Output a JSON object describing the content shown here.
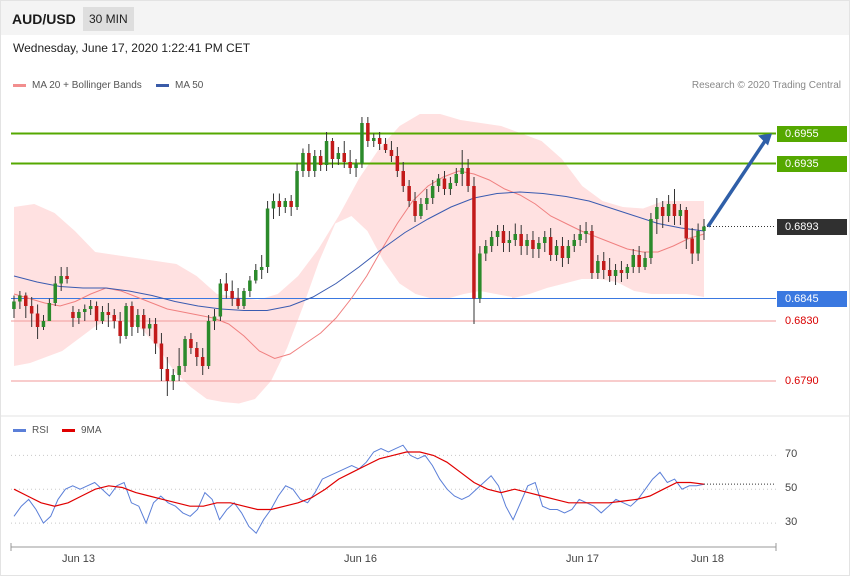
{
  "header": {
    "symbol": "AUD/USD",
    "timeframe": "30 MIN"
  },
  "timestamp": "Wednesday, June 17, 2020 1:22:41 PM CET",
  "credit": "Research © 2020 Trading Central",
  "colors": {
    "up": "#2b8a2b",
    "down": "#c21a1a",
    "band_fill": "#ffe1e1",
    "ma20": "#f08080",
    "ma50": "#3a5bb0",
    "resistance": "#55a800",
    "support": "#3a78e0",
    "support_weak": "#f29a9a",
    "current": "#303030",
    "rsi": "#5b7fd8",
    "rsi_ma": "#e00000",
    "arrow": "#2f5fa8"
  },
  "price_legend": [
    {
      "label": "MA 20 + Bollinger Bands",
      "color": "#f28e8e"
    },
    {
      "label": "MA 50",
      "color": "#3a5ba8"
    }
  ],
  "rsi_legend": [
    {
      "label": "RSI",
      "color": "#5b7fd8"
    },
    {
      "label": "9MA",
      "color": "#e00000"
    }
  ],
  "levels": [
    {
      "label": "0.6955",
      "style": "resistance"
    },
    {
      "label": "0.6935",
      "style": "resistance"
    },
    {
      "label": "0.6893",
      "style": "current"
    },
    {
      "label": "0.6845",
      "style": "support"
    },
    {
      "label": "0.6830",
      "style": "support_weak"
    },
    {
      "label": "0.6790",
      "style": "support_weak"
    }
  ],
  "chart_data": [
    {
      "type": "candlestick",
      "title": "AUD/USD 30 MIN",
      "y_unit": "price",
      "ylim": [
        0.6772,
        0.6972
      ],
      "x_ticks": [
        "Jun 13",
        "Jun 16",
        "Jun 17",
        "Jun 18"
      ],
      "target_arrow": {
        "from_price": 0.6893,
        "to_price": 0.6955
      },
      "candles": [
        {
          "o": 0.6838,
          "h": 0.6847,
          "c": 0.6843,
          "l": 0.6832
        },
        {
          "o": 0.6843,
          "h": 0.685,
          "c": 0.6847,
          "l": 0.6838
        },
        {
          "o": 0.6847,
          "h": 0.6849,
          "c": 0.684,
          "l": 0.6832
        },
        {
          "o": 0.684,
          "h": 0.6846,
          "c": 0.6835,
          "l": 0.6826
        },
        {
          "o": 0.6835,
          "h": 0.6841,
          "c": 0.6826,
          "l": 0.6818
        },
        {
          "o": 0.6826,
          "h": 0.6834,
          "c": 0.683,
          "l": 0.6824
        },
        {
          "o": 0.683,
          "h": 0.6845,
          "c": 0.6842,
          "l": 0.683
        },
        {
          "o": 0.6842,
          "h": 0.686,
          "c": 0.6855,
          "l": 0.684
        },
        {
          "o": 0.6855,
          "h": 0.6866,
          "c": 0.686,
          "l": 0.685
        },
        {
          "o": 0.686,
          "h": 0.6866,
          "c": 0.6858,
          "l": 0.6855
        },
        {
          "o": 0.6836,
          "h": 0.684,
          "c": 0.6832,
          "l": 0.6826
        },
        {
          "o": 0.6832,
          "h": 0.6838,
          "c": 0.6836,
          "l": 0.6828
        },
        {
          "o": 0.6836,
          "h": 0.6841,
          "c": 0.6838,
          "l": 0.683
        },
        {
          "o": 0.6838,
          "h": 0.6844,
          "c": 0.684,
          "l": 0.6834
        },
        {
          "o": 0.684,
          "h": 0.6843,
          "c": 0.683,
          "l": 0.6824
        },
        {
          "o": 0.683,
          "h": 0.684,
          "c": 0.6836,
          "l": 0.6828
        },
        {
          "o": 0.6836,
          "h": 0.6842,
          "c": 0.6834,
          "l": 0.6826
        },
        {
          "o": 0.6834,
          "h": 0.6838,
          "c": 0.683,
          "l": 0.6825
        },
        {
          "o": 0.683,
          "h": 0.6836,
          "c": 0.682,
          "l": 0.6815
        },
        {
          "o": 0.682,
          "h": 0.6842,
          "c": 0.684,
          "l": 0.6818
        },
        {
          "o": 0.684,
          "h": 0.6843,
          "c": 0.6826,
          "l": 0.682
        },
        {
          "o": 0.6826,
          "h": 0.6838,
          "c": 0.6834,
          "l": 0.6822
        },
        {
          "o": 0.6834,
          "h": 0.6838,
          "c": 0.6825,
          "l": 0.682
        },
        {
          "o": 0.6825,
          "h": 0.6832,
          "c": 0.6828,
          "l": 0.682
        },
        {
          "o": 0.6828,
          "h": 0.6832,
          "c": 0.6815,
          "l": 0.6808
        },
        {
          "o": 0.6815,
          "h": 0.6822,
          "c": 0.6798,
          "l": 0.679
        },
        {
          "o": 0.6798,
          "h": 0.6806,
          "c": 0.679,
          "l": 0.678
        },
        {
          "o": 0.679,
          "h": 0.6798,
          "c": 0.6794,
          "l": 0.6784
        },
        {
          "o": 0.6794,
          "h": 0.6812,
          "c": 0.68,
          "l": 0.679
        },
        {
          "o": 0.68,
          "h": 0.682,
          "c": 0.6818,
          "l": 0.6796
        },
        {
          "o": 0.6818,
          "h": 0.6822,
          "c": 0.6812,
          "l": 0.6808
        },
        {
          "o": 0.6812,
          "h": 0.6816,
          "c": 0.6806,
          "l": 0.68
        },
        {
          "o": 0.6806,
          "h": 0.6812,
          "c": 0.68,
          "l": 0.6794
        },
        {
          "o": 0.68,
          "h": 0.6834,
          "c": 0.683,
          "l": 0.6798
        },
        {
          "o": 0.683,
          "h": 0.6838,
          "c": 0.6833,
          "l": 0.6824
        },
        {
          "o": 0.6833,
          "h": 0.6858,
          "c": 0.6855,
          "l": 0.683
        },
        {
          "o": 0.6855,
          "h": 0.6862,
          "c": 0.685,
          "l": 0.6845
        },
        {
          "o": 0.685,
          "h": 0.6857,
          "c": 0.6845,
          "l": 0.684
        },
        {
          "o": 0.6845,
          "h": 0.6852,
          "c": 0.684,
          "l": 0.6838
        },
        {
          "o": 0.684,
          "h": 0.6852,
          "c": 0.685,
          "l": 0.6838
        },
        {
          "o": 0.685,
          "h": 0.686,
          "c": 0.6857,
          "l": 0.6846
        },
        {
          "o": 0.6857,
          "h": 0.6868,
          "c": 0.6864,
          "l": 0.6855
        },
        {
          "o": 0.6864,
          "h": 0.6874,
          "c": 0.6866,
          "l": 0.6858
        },
        {
          "o": 0.6866,
          "h": 0.691,
          "c": 0.6905,
          "l": 0.6862
        },
        {
          "o": 0.6905,
          "h": 0.6915,
          "c": 0.691,
          "l": 0.6898
        },
        {
          "o": 0.691,
          "h": 0.6915,
          "c": 0.6906,
          "l": 0.69
        },
        {
          "o": 0.6906,
          "h": 0.6912,
          "c": 0.691,
          "l": 0.6902
        },
        {
          "o": 0.691,
          "h": 0.6914,
          "c": 0.6906,
          "l": 0.69
        },
        {
          "o": 0.6906,
          "h": 0.6935,
          "c": 0.693,
          "l": 0.6904
        },
        {
          "o": 0.693,
          "h": 0.6945,
          "c": 0.6942,
          "l": 0.6926
        },
        {
          "o": 0.6942,
          "h": 0.6948,
          "c": 0.693,
          "l": 0.6926
        },
        {
          "o": 0.693,
          "h": 0.6944,
          "c": 0.694,
          "l": 0.6926
        },
        {
          "o": 0.694,
          "h": 0.6944,
          "c": 0.6934,
          "l": 0.693
        },
        {
          "o": 0.6934,
          "h": 0.6956,
          "c": 0.695,
          "l": 0.693
        },
        {
          "o": 0.695,
          "h": 0.6952,
          "c": 0.6938,
          "l": 0.6932
        },
        {
          "o": 0.6938,
          "h": 0.6946,
          "c": 0.6942,
          "l": 0.6934
        },
        {
          "o": 0.6942,
          "h": 0.695,
          "c": 0.6936,
          "l": 0.6932
        },
        {
          "o": 0.6936,
          "h": 0.6944,
          "c": 0.6932,
          "l": 0.6928
        },
        {
          "o": 0.6932,
          "h": 0.6938,
          "c": 0.6935,
          "l": 0.6926
        },
        {
          "o": 0.6935,
          "h": 0.6966,
          "c": 0.6962,
          "l": 0.6932
        },
        {
          "o": 0.6962,
          "h": 0.6966,
          "c": 0.695,
          "l": 0.6946
        },
        {
          "o": 0.695,
          "h": 0.6955,
          "c": 0.6952,
          "l": 0.6946
        },
        {
          "o": 0.6952,
          "h": 0.6956,
          "c": 0.6948,
          "l": 0.6944
        },
        {
          "o": 0.6948,
          "h": 0.6952,
          "c": 0.6944,
          "l": 0.6942
        },
        {
          "o": 0.6944,
          "h": 0.695,
          "c": 0.694,
          "l": 0.6936
        },
        {
          "o": 0.694,
          "h": 0.6946,
          "c": 0.693,
          "l": 0.6926
        },
        {
          "o": 0.693,
          "h": 0.6936,
          "c": 0.692,
          "l": 0.6916
        },
        {
          "o": 0.692,
          "h": 0.6924,
          "c": 0.691,
          "l": 0.6906
        },
        {
          "o": 0.691,
          "h": 0.6916,
          "c": 0.69,
          "l": 0.6896
        },
        {
          "o": 0.69,
          "h": 0.6912,
          "c": 0.6908,
          "l": 0.6898
        },
        {
          "o": 0.6908,
          "h": 0.6918,
          "c": 0.6912,
          "l": 0.6904
        },
        {
          "o": 0.6912,
          "h": 0.6924,
          "c": 0.692,
          "l": 0.6908
        },
        {
          "o": 0.692,
          "h": 0.6928,
          "c": 0.6925,
          "l": 0.6916
        },
        {
          "o": 0.6925,
          "h": 0.693,
          "c": 0.6918,
          "l": 0.6914
        },
        {
          "o": 0.6918,
          "h": 0.6926,
          "c": 0.6922,
          "l": 0.6914
        },
        {
          "o": 0.6922,
          "h": 0.6932,
          "c": 0.6928,
          "l": 0.692
        },
        {
          "o": 0.6928,
          "h": 0.6944,
          "c": 0.6932,
          "l": 0.692
        },
        {
          "o": 0.6932,
          "h": 0.6938,
          "c": 0.692,
          "l": 0.6916
        },
        {
          "o": 0.692,
          "h": 0.6926,
          "c": 0.6845,
          "l": 0.6828
        },
        {
          "o": 0.6845,
          "h": 0.688,
          "c": 0.6875,
          "l": 0.6842
        },
        {
          "o": 0.6875,
          "h": 0.6884,
          "c": 0.688,
          "l": 0.687
        },
        {
          "o": 0.688,
          "h": 0.689,
          "c": 0.6886,
          "l": 0.6876
        },
        {
          "o": 0.6886,
          "h": 0.6894,
          "c": 0.689,
          "l": 0.688
        },
        {
          "o": 0.689,
          "h": 0.6894,
          "c": 0.6882,
          "l": 0.6876
        },
        {
          "o": 0.6882,
          "h": 0.689,
          "c": 0.6884,
          "l": 0.6876
        },
        {
          "o": 0.6884,
          "h": 0.6895,
          "c": 0.6888,
          "l": 0.688
        },
        {
          "o": 0.6888,
          "h": 0.6894,
          "c": 0.688,
          "l": 0.6874
        },
        {
          "o": 0.688,
          "h": 0.6888,
          "c": 0.6884,
          "l": 0.6874
        },
        {
          "o": 0.6884,
          "h": 0.689,
          "c": 0.6878,
          "l": 0.6872
        },
        {
          "o": 0.6878,
          "h": 0.6886,
          "c": 0.6882,
          "l": 0.6872
        },
        {
          "o": 0.6882,
          "h": 0.689,
          "c": 0.6886,
          "l": 0.6876
        },
        {
          "o": 0.6886,
          "h": 0.6892,
          "c": 0.6874,
          "l": 0.687
        },
        {
          "o": 0.6874,
          "h": 0.6884,
          "c": 0.688,
          "l": 0.687
        },
        {
          "o": 0.688,
          "h": 0.6886,
          "c": 0.6872,
          "l": 0.6866
        },
        {
          "o": 0.6872,
          "h": 0.6884,
          "c": 0.688,
          "l": 0.6868
        },
        {
          "o": 0.688,
          "h": 0.6888,
          "c": 0.6884,
          "l": 0.6876
        },
        {
          "o": 0.6884,
          "h": 0.6894,
          "c": 0.6888,
          "l": 0.688
        },
        {
          "o": 0.6888,
          "h": 0.6896,
          "c": 0.689,
          "l": 0.6882
        },
        {
          "o": 0.689,
          "h": 0.6894,
          "c": 0.6862,
          "l": 0.6858
        },
        {
          "o": 0.6862,
          "h": 0.6874,
          "c": 0.687,
          "l": 0.6858
        },
        {
          "o": 0.687,
          "h": 0.6876,
          "c": 0.6864,
          "l": 0.6858
        },
        {
          "o": 0.6864,
          "h": 0.6872,
          "c": 0.686,
          "l": 0.6856
        },
        {
          "o": 0.686,
          "h": 0.6868,
          "c": 0.6864,
          "l": 0.6854
        },
        {
          "o": 0.6864,
          "h": 0.687,
          "c": 0.6862,
          "l": 0.6856
        },
        {
          "o": 0.6862,
          "h": 0.6868,
          "c": 0.6866,
          "l": 0.6858
        },
        {
          "o": 0.6866,
          "h": 0.6878,
          "c": 0.6874,
          "l": 0.6862
        },
        {
          "o": 0.6874,
          "h": 0.688,
          "c": 0.6866,
          "l": 0.6862
        },
        {
          "o": 0.6866,
          "h": 0.6876,
          "c": 0.6872,
          "l": 0.6864
        },
        {
          "o": 0.6872,
          "h": 0.6902,
          "c": 0.6898,
          "l": 0.6868
        },
        {
          "o": 0.6898,
          "h": 0.6912,
          "c": 0.6906,
          "l": 0.6888
        },
        {
          "o": 0.6906,
          "h": 0.691,
          "c": 0.69,
          "l": 0.6892
        },
        {
          "o": 0.69,
          "h": 0.6914,
          "c": 0.6908,
          "l": 0.6896
        },
        {
          "o": 0.6908,
          "h": 0.6918,
          "c": 0.69,
          "l": 0.6894
        },
        {
          "o": 0.69,
          "h": 0.6908,
          "c": 0.6904,
          "l": 0.6894
        },
        {
          "o": 0.6904,
          "h": 0.6906,
          "c": 0.6885,
          "l": 0.6878
        },
        {
          "o": 0.6885,
          "h": 0.6892,
          "c": 0.6875,
          "l": 0.6868
        },
        {
          "o": 0.6875,
          "h": 0.6895,
          "c": 0.689,
          "l": 0.687
        },
        {
          "o": 0.689,
          "h": 0.6898,
          "c": 0.6893,
          "l": 0.6884
        }
      ],
      "ma20": [
        0.6848,
        0.6845,
        0.6842,
        0.684,
        0.6843,
        0.6848,
        0.6852,
        0.685,
        0.6846,
        0.6842,
        0.6838,
        0.6836,
        0.6834,
        0.6832,
        0.6828,
        0.682,
        0.681,
        0.6805,
        0.6808,
        0.6815,
        0.6822,
        0.6832,
        0.6845,
        0.686,
        0.6878,
        0.6895,
        0.691,
        0.692,
        0.6926,
        0.693,
        0.6928,
        0.6924,
        0.6918,
        0.6914,
        0.6908,
        0.69,
        0.6895,
        0.689,
        0.6886,
        0.6882,
        0.6878,
        0.6876,
        0.6876,
        0.688,
        0.6885,
        0.6888
      ],
      "ma50": [
        0.686,
        0.6856,
        0.6853,
        0.6852,
        0.6852,
        0.685,
        0.6847,
        0.6843,
        0.684,
        0.6838,
        0.6837,
        0.6837,
        0.684,
        0.6846,
        0.6855,
        0.6866,
        0.6878,
        0.6889,
        0.6898,
        0.6906,
        0.6912,
        0.6915,
        0.6916,
        0.6915,
        0.6913,
        0.691,
        0.6905,
        0.69,
        0.6895,
        0.6892,
        0.689
      ],
      "bb_upper": [
        0.6906,
        0.6908,
        0.6902,
        0.689,
        0.6876,
        0.6874,
        0.6872,
        0.687,
        0.6868,
        0.686,
        0.6848,
        0.6846,
        0.6844,
        0.6848,
        0.686,
        0.6878,
        0.69,
        0.6925,
        0.6945,
        0.696,
        0.6968,
        0.6968,
        0.6964,
        0.6962,
        0.696,
        0.6955,
        0.695,
        0.6938,
        0.692,
        0.691,
        0.6906,
        0.6905,
        0.691,
        0.691,
        0.691
      ],
      "bb_lower": [
        0.68,
        0.6802,
        0.6806,
        0.681,
        0.6818,
        0.6826,
        0.6832,
        0.683,
        0.6824,
        0.6812,
        0.6796,
        0.6786,
        0.6778,
        0.6776,
        0.6775,
        0.6778,
        0.679,
        0.6812,
        0.684,
        0.687,
        0.6895,
        0.69,
        0.689,
        0.687,
        0.6855,
        0.6848,
        0.6845,
        0.6845,
        0.6848,
        0.685,
        0.6848,
        0.6846
      ],
      "bb_lower_tail": [
        0.6845,
        0.6848,
        0.6852,
        0.6855,
        0.6858,
        0.6858,
        0.6856,
        0.685,
        0.6848,
        0.6848,
        0.6848,
        0.6846
      ]
    },
    {
      "type": "line",
      "title": "RSI",
      "ylim": [
        20,
        85
      ],
      "y_ticks": [
        "70",
        "50",
        "30"
      ],
      "series": [
        {
          "name": "RSI",
          "values": [
            34,
            40,
            44,
            38,
            30,
            34,
            44,
            50,
            52,
            50,
            52,
            54,
            50,
            46,
            52,
            54,
            42,
            40,
            30,
            42,
            46,
            42,
            40,
            36,
            34,
            38,
            48,
            44,
            32,
            38,
            42,
            36,
            28,
            24,
            32,
            38,
            46,
            52,
            50,
            44,
            42,
            48,
            56,
            58,
            60,
            62,
            64,
            62,
            66,
            72,
            74,
            72,
            74,
            76,
            70,
            68,
            70,
            64,
            56,
            50,
            46,
            44,
            46,
            50,
            54,
            58,
            52,
            40,
            32,
            42,
            52,
            54,
            40,
            38,
            38,
            36,
            38,
            44,
            42,
            40,
            36,
            40,
            44,
            42,
            40,
            44,
            50,
            56,
            60,
            54,
            56,
            50,
            52,
            52,
            53
          ]
        },
        {
          "name": "9MA",
          "values": [
            50,
            46,
            42,
            40,
            42,
            46,
            50,
            52,
            51,
            48,
            46,
            44,
            42,
            40,
            40,
            42,
            42,
            40,
            38,
            38,
            40,
            42,
            45,
            50,
            56,
            60,
            64,
            68,
            70,
            72,
            72,
            70,
            66,
            60,
            54,
            50,
            48,
            50,
            48,
            46,
            44,
            42,
            42,
            42,
            42,
            43,
            44,
            46,
            50,
            54,
            54,
            53
          ]
        }
      ]
    }
  ]
}
